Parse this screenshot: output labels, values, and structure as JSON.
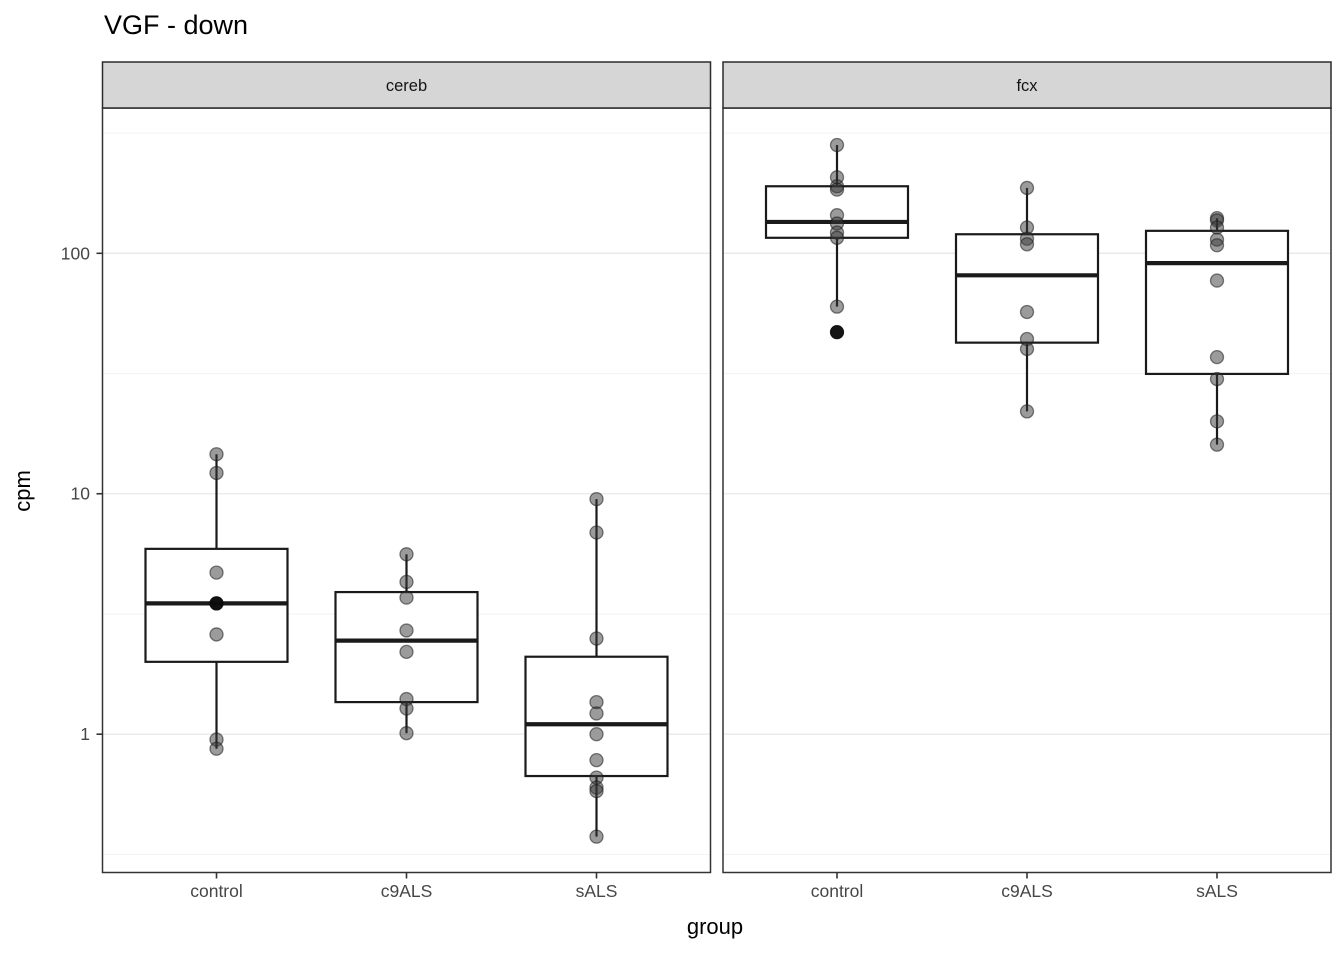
{
  "title": "VGF - down",
  "ylabel": "cpm",
  "xlabel": "group",
  "colors": {
    "strip_bg": "#d6d6d6",
    "strip_border": "#2b2b2b",
    "panel_bg": "#ffffff",
    "panel_border": "#333333",
    "grid_major": "#e9e9e9",
    "grid_minor": "#f3f3f3",
    "box_stroke": "#1a1a1a",
    "box_fill": "#ffffff",
    "point": "#383838",
    "axis_text": "#464646",
    "tick_mark": "#333333"
  },
  "chart_data": {
    "type": "boxplot",
    "log_scale_y": true,
    "grid": true,
    "ylim": [
      0.266,
      402
    ],
    "y_ticks": [
      {
        "v": 1,
        "label": "1"
      },
      {
        "v": 10,
        "label": "10"
      },
      {
        "v": 100,
        "label": "100"
      }
    ],
    "y_minor": [
      0.316,
      3.16,
      31.6,
      316
    ],
    "categories": [
      "control",
      "c9ALS",
      "sALS"
    ],
    "facets": [
      {
        "label": "cereb",
        "groups": [
          {
            "name": "control",
            "q1": 2.0,
            "median": 3.5,
            "q3": 5.9,
            "whisker_low": 0.87,
            "whisker_high": 14.6,
            "points": [
              14.6,
              12.2,
              4.7,
              3.5,
              3.5,
              2.6,
              0.95,
              0.87
            ],
            "dark_points": [
              3.5
            ]
          },
          {
            "name": "c9ALS",
            "q1": 1.36,
            "median": 2.45,
            "q3": 3.9,
            "whisker_low": 1.01,
            "whisker_high": 5.6,
            "points": [
              5.6,
              4.3,
              3.7,
              2.7,
              2.2,
              1.4,
              1.28,
              1.01
            ],
            "dark_points": []
          },
          {
            "name": "sALS",
            "q1": 0.67,
            "median": 1.1,
            "q3": 2.1,
            "whisker_low": 0.375,
            "whisker_high": 9.5,
            "points": [
              9.5,
              6.9,
              2.5,
              1.36,
              1.22,
              1.0,
              0.78,
              0.66,
              0.6,
              0.58,
              0.375
            ],
            "dark_points": []
          }
        ]
      },
      {
        "label": "fcx",
        "groups": [
          {
            "name": "control",
            "q1": 116,
            "median": 135,
            "q3": 190,
            "whisker_low": 60,
            "whisker_high": 282,
            "points": [
              282,
              207,
              190,
              184,
              144,
              133,
              122,
              116,
              60,
              47
            ],
            "dark_points": [
              47
            ]
          },
          {
            "name": "c9ALS",
            "q1": 42.5,
            "median": 81,
            "q3": 120,
            "whisker_low": 22,
            "whisker_high": 187,
            "points": [
              187,
              128,
              115,
              109,
              57,
              44,
              40,
              22
            ],
            "dark_points": []
          },
          {
            "name": "sALS",
            "q1": 31.5,
            "median": 91,
            "q3": 124,
            "whisker_low": 16,
            "whisker_high": 140,
            "points": [
              140,
              137,
              128,
              114,
              108,
              77,
              37,
              30,
              20,
              16
            ],
            "dark_points": []
          }
        ]
      }
    ]
  }
}
